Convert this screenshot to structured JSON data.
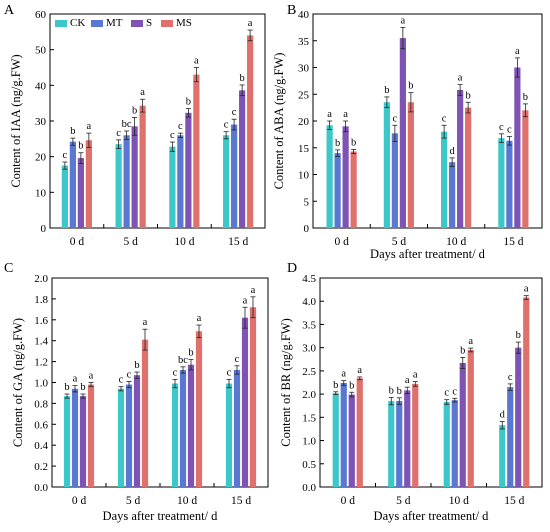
{
  "figure": {
    "legend": [
      "CK",
      "MT",
      "S",
      "MS"
    ],
    "colors": {
      "CK": "#3cc8c8",
      "MT": "#5a78d2",
      "S": "#7f53b4",
      "MS": "#e0706c",
      "axis": "#000000"
    }
  },
  "chart_data": [
    {
      "panel": "A",
      "type": "bar",
      "categories": [
        "0 d",
        "5 d",
        "10 d",
        "15 d"
      ],
      "xlabel": "",
      "ylabel": "Content of IAA (ng/g.FW)",
      "ylim": [
        0,
        60
      ],
      "ytick_step": 10,
      "ytick_decimals": 0,
      "legend": true,
      "legend_position": "top-left",
      "series": [
        {
          "name": "CK",
          "values": [
            17.5,
            23.5,
            22.8,
            26.0
          ],
          "errors": [
            1.0,
            1.2,
            1.3,
            1.0
          ],
          "letters": [
            "c",
            "c",
            "c",
            "c"
          ]
        },
        {
          "name": "MT",
          "values": [
            24.2,
            26.0,
            26.0,
            29.0
          ],
          "errors": [
            1.0,
            1.2,
            0.6,
            1.5
          ],
          "letters": [
            "b",
            "bc",
            "c",
            "c"
          ]
        },
        {
          "name": "S",
          "values": [
            19.6,
            28.5,
            32.3,
            38.6
          ],
          "errors": [
            1.5,
            2.5,
            1.2,
            1.5
          ],
          "letters": [
            "b",
            "b",
            "b",
            "b"
          ]
        },
        {
          "name": "MS",
          "values": [
            24.6,
            34.3,
            43.0,
            54.0
          ],
          "errors": [
            2.0,
            1.8,
            2.0,
            1.5
          ],
          "letters": [
            "a",
            "a",
            "a",
            "a"
          ]
        }
      ]
    },
    {
      "panel": "B",
      "type": "bar",
      "categories": [
        "0 d",
        "5 d",
        "10 d",
        "15 d"
      ],
      "xlabel": "Days after treatment/ d",
      "ylabel": "Content of ABA (ng/g.FW)",
      "ylim": [
        0,
        40
      ],
      "ytick_step": 5,
      "ytick_decimals": 0,
      "legend": false,
      "series": [
        {
          "name": "CK",
          "values": [
            19.2,
            23.5,
            18.0,
            16.8
          ],
          "errors": [
            0.8,
            1.0,
            1.2,
            0.8
          ],
          "letters": [
            "a",
            "b",
            "c",
            "c"
          ]
        },
        {
          "name": "MT",
          "values": [
            14.0,
            17.7,
            12.3,
            16.3
          ],
          "errors": [
            0.6,
            1.5,
            0.8,
            0.8
          ],
          "letters": [
            "b",
            "c",
            "d",
            "c"
          ]
        },
        {
          "name": "S",
          "values": [
            19.0,
            35.5,
            25.8,
            30.0
          ],
          "errors": [
            1.0,
            2.0,
            1.0,
            1.8
          ],
          "letters": [
            "a",
            "a",
            "a",
            "a"
          ]
        },
        {
          "name": "MS",
          "values": [
            14.3,
            23.5,
            22.5,
            22.0
          ],
          "errors": [
            0.4,
            1.8,
            1.0,
            1.2
          ],
          "letters": [
            "b",
            "b",
            "b",
            "b"
          ]
        }
      ]
    },
    {
      "panel": "C",
      "type": "bar",
      "categories": [
        "0 d",
        "5 d",
        "10 d",
        "15 d"
      ],
      "xlabel": "Days after treatment/ d",
      "ylabel": "Content of GA (ng/g.FW)",
      "ylim": [
        0,
        2.0
      ],
      "ytick_step": 0.2,
      "ytick_decimals": 1,
      "legend": false,
      "series": [
        {
          "name": "CK",
          "values": [
            0.87,
            0.94,
            0.99,
            0.99
          ],
          "errors": [
            0.02,
            0.02,
            0.04,
            0.04
          ],
          "letters": [
            "b",
            "c",
            "c",
            "c"
          ]
        },
        {
          "name": "MT",
          "values": [
            0.94,
            0.98,
            1.12,
            1.12
          ],
          "errors": [
            0.03,
            0.03,
            0.03,
            0.04
          ],
          "letters": [
            "a",
            "c",
            "bc",
            "c"
          ]
        },
        {
          "name": "S",
          "values": [
            0.87,
            1.07,
            1.17,
            1.62
          ],
          "errors": [
            0.02,
            0.03,
            0.05,
            0.1
          ],
          "letters": [
            "b",
            "b",
            "b",
            "a"
          ]
        },
        {
          "name": "MS",
          "values": [
            0.98,
            1.41,
            1.49,
            1.72
          ],
          "errors": [
            0.02,
            0.1,
            0.06,
            0.1
          ],
          "letters": [
            "a",
            "a",
            "a",
            "a"
          ]
        }
      ]
    },
    {
      "panel": "D",
      "type": "bar",
      "categories": [
        "0 d",
        "5 d",
        "10 d",
        "15 d"
      ],
      "xlabel": "Days after treatment/ d",
      "ylabel": "Content of BR (ng/g.FW)",
      "ylim": [
        0,
        4.5
      ],
      "ytick_step": 0.5,
      "ytick_decimals": 1,
      "legend": false,
      "series": [
        {
          "name": "CK",
          "values": [
            2.02,
            1.85,
            1.83,
            1.33
          ],
          "errors": [
            0.03,
            0.08,
            0.05,
            0.08
          ],
          "letters": [
            "b",
            "b",
            "c",
            "d"
          ]
        },
        {
          "name": "MT",
          "values": [
            2.24,
            1.85,
            1.87,
            2.15
          ],
          "errors": [
            0.05,
            0.07,
            0.04,
            0.07
          ],
          "letters": [
            "a",
            "b",
            "c",
            "c"
          ]
        },
        {
          "name": "S",
          "values": [
            1.99,
            2.08,
            2.67,
            3.0
          ],
          "errors": [
            0.05,
            0.07,
            0.12,
            0.12
          ],
          "letters": [
            "b",
            "a",
            "b",
            "b"
          ]
        },
        {
          "name": "MS",
          "values": [
            2.34,
            2.22,
            2.95,
            4.08
          ],
          "errors": [
            0.03,
            0.05,
            0.04,
            0.04
          ],
          "letters": [
            "a",
            "a",
            "a",
            "a"
          ]
        }
      ]
    }
  ]
}
